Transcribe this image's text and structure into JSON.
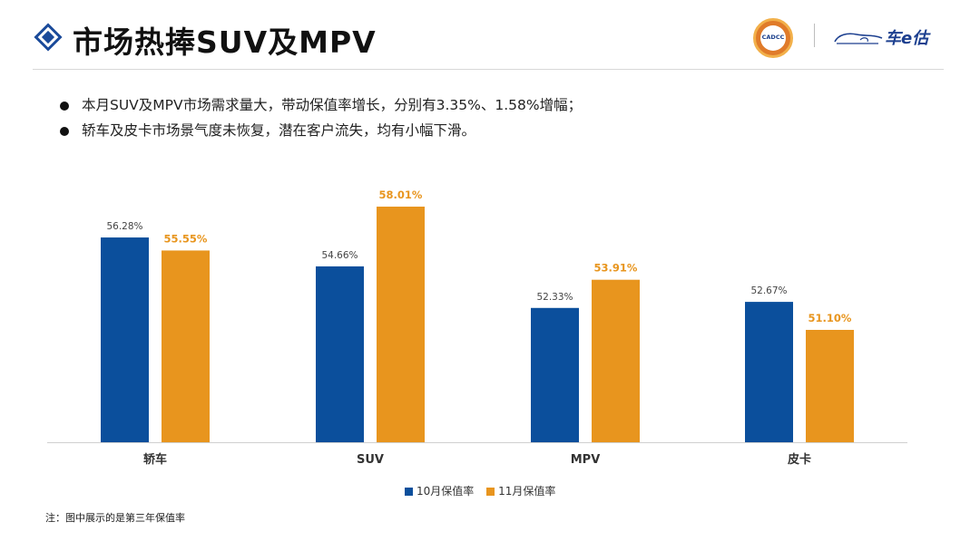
{
  "header": {
    "title": "市场热捧SUV及MPV",
    "seal_text": "CADCC",
    "logo_text": "车e估"
  },
  "bullets": [
    "本月SUV及MPV市场需求量大，带动保值率增长，分别有3.35%、1.58%增幅；",
    "轿车及皮卡市场景气度未恢复，潜在客户流失，均有小幅下滑。"
  ],
  "chart_data": {
    "type": "bar",
    "categories": [
      "轿车",
      "SUV",
      "MPV",
      "皮卡"
    ],
    "series": [
      {
        "name": "10月保值率",
        "values": [
          56.28,
          54.66,
          52.33,
          52.67
        ],
        "labels": [
          "56.28%",
          "54.66%",
          "52.33%",
          "52.67%"
        ],
        "color": "#0b4f9c"
      },
      {
        "name": "11月保值率",
        "values": [
          55.55,
          58.01,
          53.91,
          51.1
        ],
        "labels": [
          "55.55%",
          "58.01%",
          "53.91%",
          "51.10%"
        ],
        "color": "#e8951e"
      }
    ],
    "ylim": [
      44.8,
      59.0
    ],
    "title": "",
    "xlabel": "",
    "ylabel": ""
  },
  "footnote": "注：图中展示的是第三年保值率",
  "colors": {
    "accent": "#1a4a9a",
    "label_orange": "#e8951e"
  }
}
